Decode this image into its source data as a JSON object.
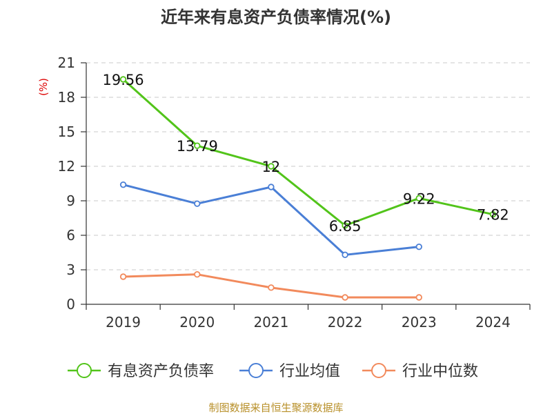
{
  "chart_data": {
    "type": "line",
    "title": "近年来有息资产负债率情况(%)",
    "ylabel": "(%)",
    "xlabel": "",
    "ylim": [
      0,
      21
    ],
    "yticks": [
      0,
      3,
      6,
      9,
      12,
      15,
      18,
      21
    ],
    "categories": [
      "2019",
      "2020",
      "2021",
      "2022",
      "2023",
      "2024"
    ],
    "grid": true,
    "legend_position": "bottom",
    "series": [
      {
        "name": "有息资产负债率",
        "color": "#52c41a",
        "values": [
          19.56,
          13.79,
          12,
          6.85,
          9.22,
          7.82
        ],
        "labels": [
          "19.56",
          "13.79",
          "12",
          "6.85",
          "9.22",
          "7.82"
        ]
      },
      {
        "name": "行业均值",
        "color": "#4a7fd6",
        "values": [
          10.4,
          8.75,
          10.2,
          4.3,
          5.0,
          null
        ]
      },
      {
        "name": "行业中位数",
        "color": "#f28a5c",
        "values": [
          2.4,
          2.6,
          1.45,
          0.6,
          0.6,
          null
        ]
      }
    ]
  },
  "source": "制图数据来自恒生聚源数据库"
}
